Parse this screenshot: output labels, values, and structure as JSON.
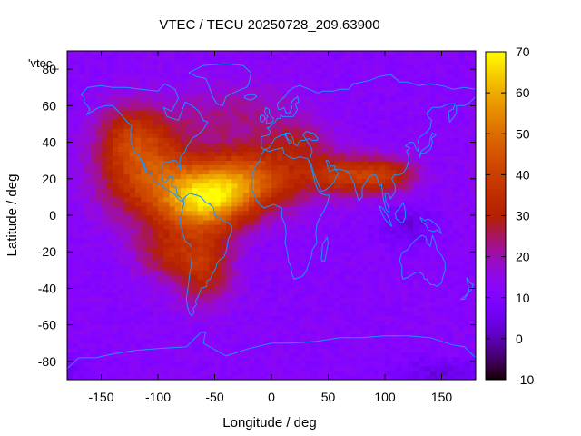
{
  "chart_data": {
    "type": "heatmap",
    "title": "VTEC / TECU 20250728_209.63900",
    "xlabel": "Longitude / deg",
    "ylabel": "Latitude / deg",
    "xlim": [
      -180,
      180
    ],
    "ylim": [
      -90,
      90
    ],
    "xticks": [
      -150,
      -100,
      -50,
      0,
      50,
      100,
      150
    ],
    "yticks": [
      -80,
      -60,
      -40,
      -20,
      0,
      20,
      40,
      60,
      80
    ],
    "colorbar": {
      "range": [
        -10,
        70
      ],
      "ticks": [
        -10,
        0,
        10,
        20,
        30,
        40,
        50,
        60,
        70
      ],
      "palette": "gnuplot-rgbformulae-7-5-15"
    },
    "key_label": "'vtec_",
    "grid": false,
    "colors": {
      "coastline": "#1e90ff",
      "frame": "#000000",
      "background_fill": "#8c00ff"
    },
    "field_summary": {
      "background_tecu": 12,
      "enhancements": [
        {
          "lon": -60,
          "lat": 8,
          "tecu": 62,
          "note": "peak over northern South America"
        },
        {
          "lon": -20,
          "lat": 20,
          "tecu": 55,
          "note": "equatorial Atlantic / West Africa"
        },
        {
          "lon": -110,
          "lat": 25,
          "tecu": 42,
          "note": "North America / Mexico"
        },
        {
          "lon": 60,
          "lat": 22,
          "tecu": 38,
          "note": "Middle East / Arabia"
        },
        {
          "lon": 100,
          "lat": 22,
          "tecu": 35,
          "note": "South-East Asia"
        },
        {
          "lon": -60,
          "lat": -30,
          "tecu": 40,
          "note": "southern South America"
        }
      ],
      "depleted_regions": [
        {
          "lon": 120,
          "lat": -5,
          "tecu": 5
        },
        {
          "lon": 150,
          "lat": -85,
          "tecu": 4
        }
      ]
    }
  }
}
